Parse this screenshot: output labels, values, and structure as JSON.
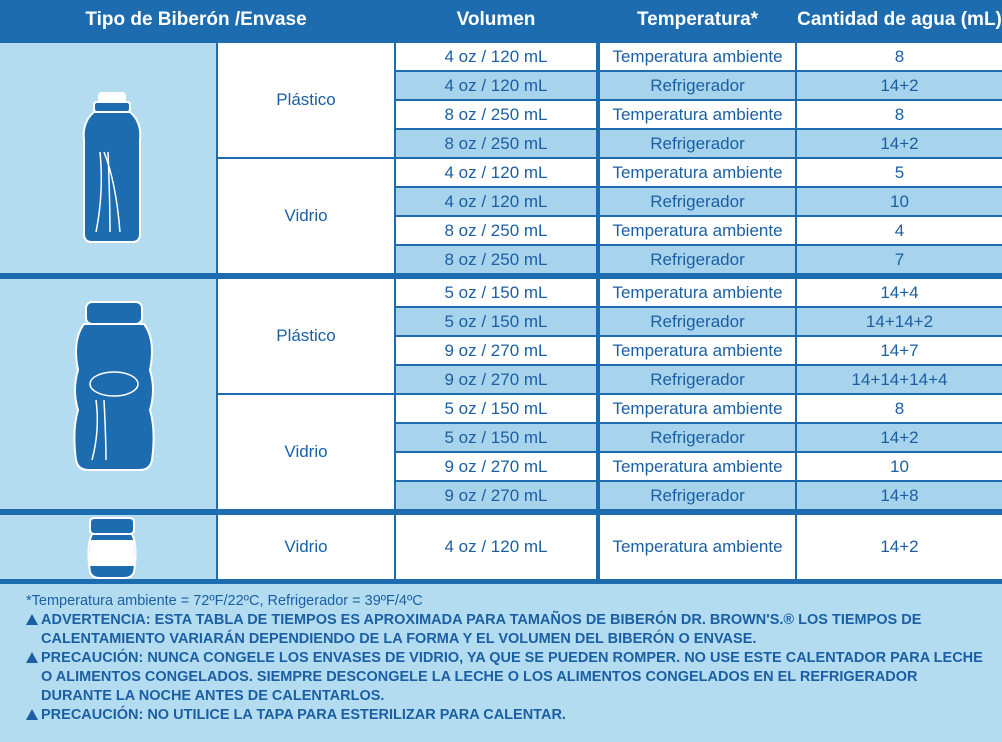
{
  "table": {
    "header": [
      "Tipo de Biberón /Envase",
      "Volumen",
      "Temperatura*",
      "Cantidad de agua (mL)"
    ],
    "groups": [
      {
        "sections": [
          {
            "material": "Plástico",
            "rows": [
              [
                "4 oz / 120 mL",
                "Temperatura ambiente",
                "8"
              ],
              [
                "4 oz / 120 mL",
                "Refrigerador",
                "14+2"
              ],
              [
                "8 oz / 250 mL",
                "Temperatura ambiente",
                "8"
              ],
              [
                "8 oz / 250 mL",
                "Refrigerador",
                "14+2"
              ]
            ]
          },
          {
            "material": "Vidrio",
            "rows": [
              [
                "4 oz / 120 mL",
                "Temperatura ambiente",
                "5"
              ],
              [
                "4 oz / 120 mL",
                "Refrigerador",
                "10"
              ],
              [
                "8 oz / 250 mL",
                "Temperatura ambiente",
                "4"
              ],
              [
                "8 oz / 250 mL",
                "Refrigerador",
                "7"
              ]
            ]
          }
        ]
      },
      {
        "sections": [
          {
            "material": "Plástico",
            "rows": [
              [
                "5 oz / 150 mL",
                "Temperatura ambiente",
                "14+4"
              ],
              [
                "5 oz / 150 mL",
                "Refrigerador",
                "14+14+2"
              ],
              [
                "9 oz / 270 mL",
                "Temperatura ambiente",
                "14+7"
              ],
              [
                "9 oz / 270 mL",
                "Refrigerador",
                "14+14+14+4"
              ]
            ]
          },
          {
            "material": "Vidrio",
            "rows": [
              [
                "5 oz / 150 mL",
                "Temperatura ambiente",
                "8"
              ],
              [
                "5 oz / 150 mL",
                "Refrigerador",
                "14+2"
              ],
              [
                "9 oz / 270 mL",
                "Temperatura ambiente",
                "10"
              ],
              [
                "9 oz / 270 mL",
                "Refrigerador",
                "14+8"
              ]
            ]
          }
        ]
      },
      {
        "sections": [
          {
            "material": "Vidrio",
            "rows": [
              [
                "4 oz / 120 mL",
                "Temperatura ambiente",
                "14+2"
              ]
            ]
          }
        ]
      }
    ]
  },
  "notes": {
    "footnote": "*Temperatura ambiente = 72ºF/22ºC, Refrigerador = 39ºF/4ºC",
    "warnings": [
      "ADVERTENCIA: ESTA TABLA DE TIEMPOS ES APROXIMADA PARA TAMAÑOS DE BIBERÓN DR. BROWN'S.® LOS TIEMPOS DE CALENTAMIENTO VARIARÁN DEPENDIENDO DE LA FORMA Y EL VOLUMEN DEL BIBERÓN O ENVASE.",
      "PRECAUCIÓN: NUNCA CONGELE LOS ENVASES DE VIDRIO, YA QUE SE PUEDEN ROMPER. NO USE ESTE CALENTADOR PARA LECHE O ALIMENTOS CONGELADOS. SIEMPRE DESCONGELE LA LECHE O LOS ALIMENTOS CONGELADOS EN EL REFRIGERADOR DURANTE LA NOCHE ANTES DE CALENTARLOS.",
      "PRECAUCIÓN: NO UTILICE LA TAPA PARA ESTERILIZAR PARA CALENTAR."
    ]
  }
}
